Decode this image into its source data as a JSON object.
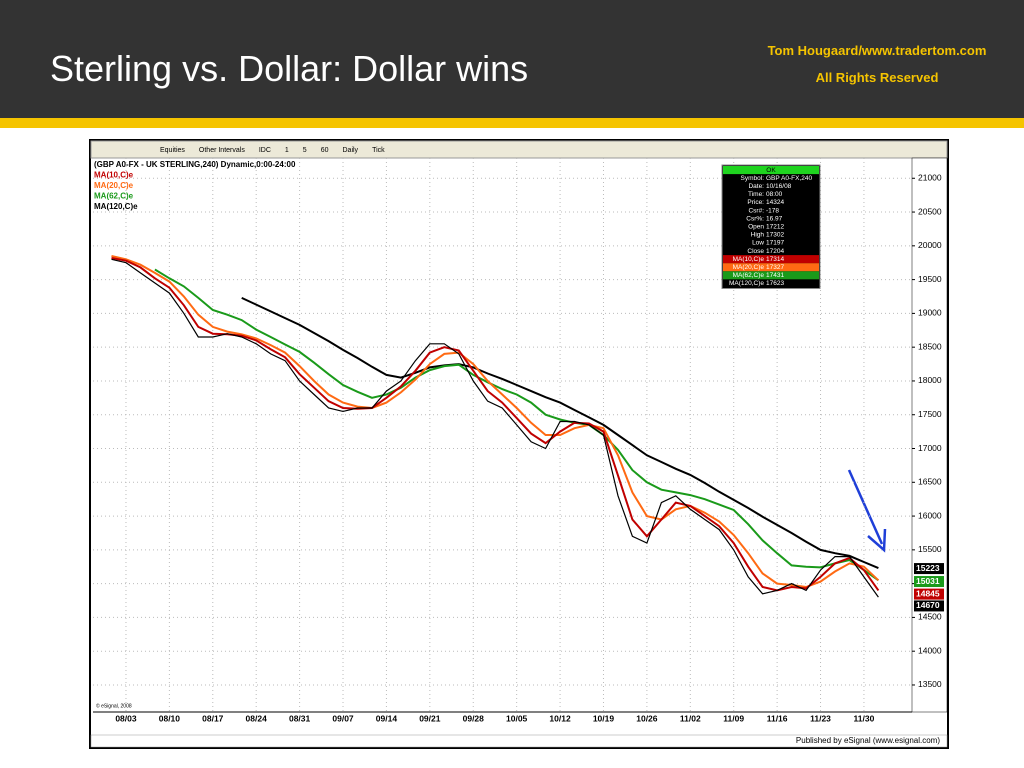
{
  "header": {
    "title": "Sterling vs. Dollar: Dollar wins",
    "credit": [
      "Tom Hougaard/www.tradertom.com",
      "All Rights Reserved"
    ]
  },
  "toolbar": [
    "Equities",
    "Other Intervals",
    "IDC",
    "1",
    "5",
    "60",
    "Daily",
    "Tick"
  ],
  "copyright": "© eSignal, 2008",
  "footer": "Published by eSignal (www.esignal.com)",
  "data_window": {
    "header": "OK",
    "rows": [
      [
        "Symbol:",
        "GBP A0-FX,240"
      ],
      [
        "Date:",
        "10/16/08"
      ],
      [
        "Time:",
        "08:00"
      ],
      [
        "Price:",
        "14324"
      ],
      [
        "Csr#:",
        "-178"
      ],
      [
        "Csr%:",
        "16.97"
      ],
      [
        "Open",
        "17212"
      ],
      [
        "High",
        "17302"
      ],
      [
        "Low",
        "17197"
      ],
      [
        "Close",
        "17204"
      ],
      [
        "MA(10,C)e",
        "17314"
      ],
      [
        "MA(20,C)e",
        "17327"
      ],
      [
        "MA(62,C)e",
        "17431"
      ],
      [
        "MA(120,C)e",
        "17623"
      ]
    ]
  },
  "chart_data": {
    "type": "line",
    "categories": [
      null,
      "08/03",
      null,
      null,
      "08/10",
      null,
      null,
      "08/17",
      null,
      null,
      "08/24",
      null,
      null,
      "08/31",
      null,
      null,
      "09/07",
      null,
      null,
      "09/14",
      null,
      null,
      "09/21",
      null,
      null,
      "09/28",
      null,
      null,
      "10/05",
      null,
      null,
      "10/12",
      null,
      null,
      "10/19",
      null,
      null,
      "10/26",
      null,
      null,
      "11/02",
      null,
      null,
      "11/09",
      null,
      null,
      "11/16",
      null,
      null,
      "11/23",
      null,
      null,
      "11/30",
      null
    ],
    "series": [
      {
        "name": "(GBP A0-FX - UK STERLING,240) Dynamic,0:00-24:00",
        "color": "#000000",
        "values": [
          19800,
          19750,
          19600,
          19450,
          19300,
          19000,
          18650,
          18650,
          18700,
          18650,
          18550,
          18400,
          18300,
          18000,
          17800,
          17600,
          17550,
          17600,
          17600,
          17850,
          18000,
          18300,
          18550,
          18550,
          18400,
          18000,
          17700,
          17600,
          17350,
          17100,
          17000,
          17400,
          17400,
          17350,
          17200,
          16300,
          15700,
          15600,
          16200,
          16300,
          16100,
          15950,
          15800,
          15500,
          15100,
          14850,
          14900,
          15000,
          14900,
          15200,
          15400,
          15400,
          15100,
          14800
        ]
      },
      {
        "name": "MA(10,C)e",
        "color": "#c00000",
        "values": [
          19820,
          19780,
          19680,
          19520,
          19380,
          19120,
          18800,
          18700,
          18690,
          18670,
          18600,
          18470,
          18350,
          18100,
          17900,
          17700,
          17600,
          17590,
          17600,
          17750,
          17920,
          18150,
          18420,
          18500,
          18450,
          18150,
          17850,
          17680,
          17450,
          17220,
          17080,
          17250,
          17380,
          17370,
          17250,
          16600,
          15950,
          15700,
          15950,
          16200,
          16150,
          16000,
          15850,
          15600,
          15250,
          14950,
          14900,
          14950,
          14930,
          15100,
          15300,
          15380,
          15200,
          14900
        ]
      },
      {
        "name": "MA(20,C)e",
        "color": "#ff6a13",
        "values": [
          19850,
          19800,
          19720,
          19600,
          19470,
          19250,
          18980,
          18800,
          18730,
          18690,
          18630,
          18530,
          18420,
          18220,
          18000,
          17800,
          17680,
          17620,
          17600,
          17680,
          17830,
          18020,
          18250,
          18400,
          18420,
          18250,
          18000,
          17800,
          17600,
          17380,
          17200,
          17200,
          17300,
          17350,
          17300,
          16900,
          16350,
          16000,
          15950,
          16100,
          16150,
          16050,
          15920,
          15720,
          15450,
          15150,
          15000,
          14980,
          14950,
          15030,
          15180,
          15300,
          15250,
          15050
        ]
      },
      {
        "name": "MA(62,C)e",
        "color": "#1a9a1a",
        "values": [
          null,
          null,
          null,
          19650,
          19520,
          19400,
          19230,
          19050,
          18980,
          18900,
          18760,
          18650,
          18540,
          18430,
          18270,
          18100,
          17940,
          17840,
          17750,
          17800,
          17900,
          18050,
          18160,
          18220,
          18240,
          18090,
          17980,
          17880,
          17800,
          17680,
          17500,
          17430,
          17380,
          17350,
          17200,
          16980,
          16680,
          16500,
          16390,
          16350,
          16310,
          16250,
          16170,
          16090,
          15880,
          15640,
          15450,
          15270,
          15250,
          15240,
          15300,
          15350,
          15200,
          15050
        ]
      },
      {
        "name": "MA(120,C)e",
        "color": "#000000",
        "values": [
          null,
          null,
          null,
          null,
          null,
          null,
          null,
          null,
          null,
          19230,
          19130,
          19030,
          18930,
          18830,
          18710,
          18590,
          18460,
          18340,
          18210,
          18090,
          18050,
          18120,
          18200,
          18230,
          18250,
          18200,
          18110,
          18030,
          17940,
          17850,
          17760,
          17680,
          17570,
          17460,
          17350,
          17200,
          17050,
          16900,
          16800,
          16700,
          16610,
          16490,
          16360,
          16240,
          16120,
          15990,
          15870,
          15750,
          15620,
          15500,
          15450,
          15410,
          15320,
          15230
        ]
      }
    ],
    "last_values": [
      {
        "value": 15223,
        "color": "#000000"
      },
      {
        "value": 15031,
        "color": "#1a9a1a"
      },
      {
        "value": 14845,
        "color": "#c00000"
      },
      {
        "value": 14670,
        "color": "#000000"
      }
    ],
    "ylim": [
      13100,
      21300
    ],
    "yticks": [
      13500,
      14000,
      14500,
      15000,
      15500,
      16000,
      16500,
      17000,
      17500,
      18000,
      18500,
      19000,
      19500,
      20000,
      20500,
      21000
    ],
    "grid": true
  }
}
